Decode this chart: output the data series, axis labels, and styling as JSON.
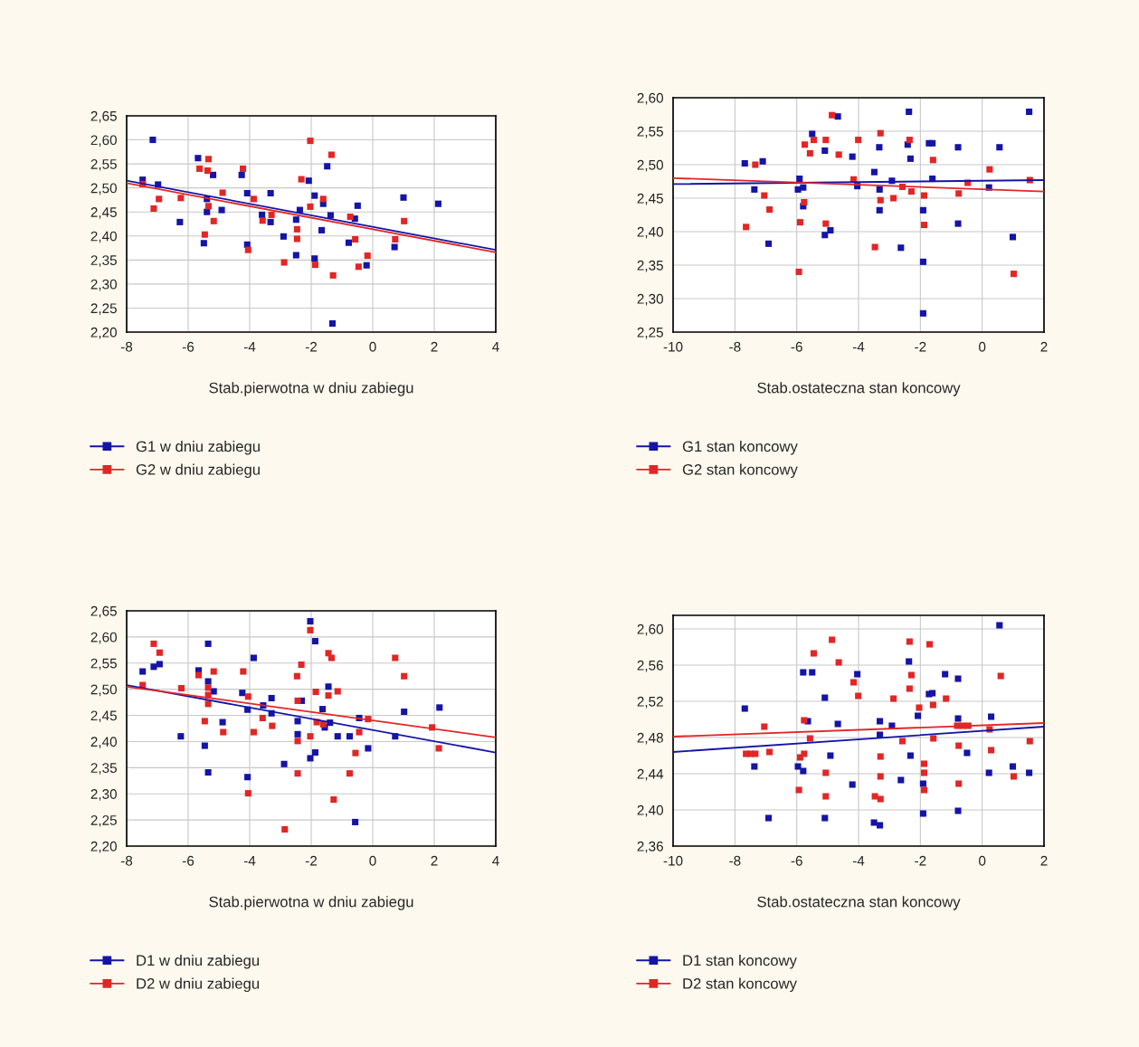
{
  "chart_data": [
    {
      "type": "scatter",
      "xlabel": "Stab.pierwotna w dniu zabiegu",
      "xlim": [
        -8,
        4
      ],
      "xticks": [
        -8,
        -6,
        -4,
        -2,
        0,
        2,
        4
      ],
      "ylim": [
        2.2,
        2.65
      ],
      "yticks": [
        {
          "value": 2.2,
          "label": "2,20"
        },
        {
          "value": 2.25,
          "label": "2,25"
        },
        {
          "value": 2.3,
          "label": "2,30"
        },
        {
          "value": 2.35,
          "label": "2,35"
        },
        {
          "value": 2.4,
          "label": "2,40"
        },
        {
          "value": 2.45,
          "label": "2,45"
        },
        {
          "value": 2.5,
          "label": "2,50"
        },
        {
          "value": 2.55,
          "label": "2,55"
        },
        {
          "value": 2.6,
          "label": "2,60"
        },
        {
          "value": 2.65,
          "label": "2,65"
        }
      ],
      "grid": true,
      "legend": "bottom",
      "marker": "square",
      "line_style": "solid",
      "series": [
        {
          "name": "G1 w dniu zabiegu",
          "color": "#1414a8",
          "x": [
            -7.15,
            -6.98,
            -6.27,
            -5.68,
            -5.49,
            -5.39,
            -5.39,
            -5.19,
            -4.91,
            -4.26,
            -4.08,
            -4.08,
            -3.6,
            -3.32,
            -3.32,
            -2.9,
            -2.49,
            -2.49,
            -2.37,
            -2.08,
            -1.89,
            -1.89,
            -1.61,
            -1.48,
            -1.66,
            -1.37,
            -1.31,
            -0.78,
            -0.58,
            -0.49,
            -0.2,
            0.71,
            1.0,
            2.13,
            -7.48
          ],
          "values": [
            2.6,
            2.507,
            2.429,
            2.562,
            2.385,
            2.477,
            2.45,
            2.527,
            2.454,
            2.527,
            2.489,
            2.382,
            2.444,
            2.489,
            2.429,
            2.399,
            2.434,
            2.36,
            2.454,
            2.515,
            2.484,
            2.353,
            2.467,
            2.545,
            2.412,
            2.443,
            2.218,
            2.386,
            2.436,
            2.463,
            2.339,
            2.377,
            2.48,
            2.467,
            2.517
          ]
        },
        {
          "name": "G2 w dniu zabiegu",
          "color": "#e22626",
          "x": [
            -7.48,
            -7.12,
            -6.95,
            -6.24,
            -5.63,
            -5.46,
            -5.34,
            -5.37,
            -5.34,
            -5.17,
            -4.88,
            -4.22,
            -4.05,
            -3.87,
            -3.58,
            -3.29,
            -2.88,
            -2.46,
            -2.46,
            -2.32,
            -2.03,
            -2.03,
            -1.87,
            -1.61,
            -1.34,
            -1.29,
            -0.73,
            -0.57,
            -0.46,
            -0.17,
            0.73,
            1.02
          ],
          "values": [
            2.508,
            2.457,
            2.477,
            2.479,
            2.54,
            2.403,
            2.56,
            2.536,
            2.462,
            2.431,
            2.49,
            2.54,
            2.371,
            2.477,
            2.432,
            2.444,
            2.345,
            2.414,
            2.394,
            2.518,
            2.598,
            2.461,
            2.34,
            2.477,
            2.569,
            2.318,
            2.44,
            2.393,
            2.336,
            2.359,
            2.393,
            2.431
          ]
        },
        {
          "type": "line",
          "color": "#1414a8",
          "x": [
            -8,
            4
          ],
          "values": [
            2.515,
            2.371
          ],
          "marker": "none"
        },
        {
          "type": "line",
          "color": "#e22626",
          "x": [
            -8,
            4
          ],
          "values": [
            2.51,
            2.366
          ],
          "marker": "none"
        }
      ]
    },
    {
      "type": "scatter",
      "xlabel": "Stab.ostateczna stan koncowy",
      "xlim": [
        -10,
        2
      ],
      "xticks": [
        -10,
        -8,
        -6,
        -4,
        -2,
        0,
        2
      ],
      "ylim": [
        2.25,
        2.6
      ],
      "yticks": [
        {
          "value": 2.25,
          "label": "2,25"
        },
        {
          "value": 2.3,
          "label": "2,30"
        },
        {
          "value": 2.35,
          "label": "2,35"
        },
        {
          "value": 2.4,
          "label": "2,40"
        },
        {
          "value": 2.45,
          "label": "2,45"
        },
        {
          "value": 2.5,
          "label": "2,50"
        },
        {
          "value": 2.55,
          "label": "2,55"
        },
        {
          "value": 2.6,
          "label": "2,60"
        }
      ],
      "grid": true,
      "legend": "bottom",
      "marker": "square",
      "line_style": "solid",
      "series": [
        {
          "name": "G1 stan koncowy",
          "color": "#1414a8",
          "x": [
            -7.68,
            -7.1,
            -7.37,
            -6.91,
            -5.91,
            -5.96,
            -5.79,
            -5.79,
            -5.5,
            -5.09,
            -5.09,
            -4.91,
            -4.67,
            -4.2,
            -4.04,
            -3.49,
            -3.33,
            -3.32,
            -3.32,
            -2.92,
            -2.63,
            -2.37,
            -2.41,
            -2.32,
            -1.91,
            -1.91,
            -1.91,
            -1.72,
            -1.61,
            -1.61,
            -0.78,
            -0.78,
            0.22,
            0.56,
            0.99,
            1.52
          ],
          "values": [
            2.502,
            2.505,
            2.463,
            2.382,
            2.479,
            2.463,
            2.466,
            2.438,
            2.546,
            2.521,
            2.395,
            2.402,
            2.572,
            2.512,
            2.468,
            2.489,
            2.526,
            2.463,
            2.432,
            2.476,
            2.376,
            2.579,
            2.53,
            2.509,
            2.432,
            2.355,
            2.278,
            2.532,
            2.532,
            2.479,
            2.526,
            2.412,
            2.466,
            2.526,
            2.392,
            2.579
          ]
        },
        {
          "name": "G2 stan koncowy",
          "color": "#e22626",
          "x": [
            -7.64,
            -7.34,
            -7.05,
            -6.88,
            -5.93,
            -5.89,
            -5.76,
            -5.74,
            -5.57,
            -5.45,
            -5.06,
            -5.06,
            -4.86,
            -4.64,
            -4.16,
            -4.01,
            -3.47,
            -3.29,
            -3.29,
            -2.87,
            -2.58,
            -2.35,
            -2.29,
            -1.88,
            -1.88,
            -1.59,
            -0.76,
            -0.47,
            0.24,
            1.02,
            1.54
          ],
          "values": [
            2.407,
            2.5,
            2.454,
            2.433,
            2.34,
            2.414,
            2.444,
            2.53,
            2.517,
            2.537,
            2.537,
            2.412,
            2.574,
            2.515,
            2.478,
            2.537,
            2.377,
            2.547,
            2.447,
            2.45,
            2.467,
            2.537,
            2.46,
            2.454,
            2.41,
            2.507,
            2.457,
            2.473,
            2.493,
            2.337,
            2.477
          ]
        },
        {
          "type": "line",
          "color": "#1414a8",
          "x": [
            -10,
            2
          ],
          "values": [
            2.471,
            2.477
          ],
          "marker": "none"
        },
        {
          "type": "line",
          "color": "#e22626",
          "x": [
            -10,
            2
          ],
          "values": [
            2.48,
            2.46
          ],
          "marker": "none"
        }
      ]
    },
    {
      "type": "scatter",
      "xlabel": "Stab.pierwotna w dniu zabiegu",
      "xlim": [
        -8,
        4
      ],
      "xticks": [
        -8,
        -6,
        -4,
        -2,
        0,
        2,
        4
      ],
      "ylim": [
        2.2,
        2.65
      ],
      "yticks": [
        {
          "value": 2.2,
          "label": "2,20"
        },
        {
          "value": 2.25,
          "label": "2,25"
        },
        {
          "value": 2.3,
          "label": "2,30"
        },
        {
          "value": 2.35,
          "label": "2,35"
        },
        {
          "value": 2.4,
          "label": "2,40"
        },
        {
          "value": 2.45,
          "label": "2,45"
        },
        {
          "value": 2.5,
          "label": "2,50"
        },
        {
          "value": 2.55,
          "label": "2,55"
        },
        {
          "value": 2.6,
          "label": "2,60"
        },
        {
          "value": 2.65,
          "label": "2,65"
        }
      ],
      "grid": true,
      "legend": "bottom",
      "marker": "square",
      "line_style": "solid",
      "series": [
        {
          "name": "D1 w dniu zabiegu",
          "color": "#1414a8",
          "x": [
            -7.48,
            -7.12,
            -6.93,
            -6.24,
            -5.66,
            -5.46,
            -5.35,
            -5.35,
            -5.35,
            -5.17,
            -4.88,
            -4.24,
            -4.07,
            -4.07,
            -3.87,
            -3.56,
            -3.29,
            -3.29,
            -2.88,
            -2.44,
            -2.44,
            -2.31,
            -2.03,
            -2.03,
            -1.87,
            -1.87,
            -1.63,
            -1.56,
            -1.44,
            -1.39,
            -1.14,
            -0.75,
            -0.44,
            -0.57,
            -0.15,
            0.73,
            1.02,
            2.17
          ],
          "values": [
            2.534,
            2.543,
            2.548,
            2.41,
            2.536,
            2.392,
            2.587,
            2.341,
            2.515,
            2.496,
            2.437,
            2.493,
            2.461,
            2.332,
            2.56,
            2.469,
            2.483,
            2.454,
            2.357,
            2.439,
            2.414,
            2.478,
            2.63,
            2.368,
            2.592,
            2.379,
            2.462,
            2.427,
            2.505,
            2.436,
            2.41,
            2.41,
            2.445,
            2.246,
            2.387,
            2.41,
            2.457,
            2.465
          ]
        },
        {
          "name": "D2 w dniu zabiegu",
          "color": "#e22626",
          "x": [
            -7.48,
            -7.12,
            -6.93,
            -6.22,
            -5.66,
            -5.46,
            -5.35,
            -5.35,
            -5.35,
            -5.17,
            -4.86,
            -4.21,
            -4.05,
            -4.05,
            -3.87,
            -3.58,
            -3.27,
            -2.86,
            -2.46,
            -2.44,
            -2.44,
            -2.44,
            -2.32,
            -2.03,
            -2.03,
            -1.85,
            -1.82,
            -1.61,
            -1.44,
            -1.34,
            -1.44,
            -1.14,
            -1.27,
            -0.75,
            -0.56,
            -0.44,
            -0.15,
            0.73,
            1.02,
            1.93,
            2.15
          ],
          "values": [
            2.508,
            2.587,
            2.57,
            2.502,
            2.527,
            2.439,
            2.503,
            2.489,
            2.472,
            2.534,
            2.418,
            2.534,
            2.486,
            2.301,
            2.418,
            2.445,
            2.43,
            2.232,
            2.525,
            2.478,
            2.401,
            2.339,
            2.547,
            2.613,
            2.41,
            2.495,
            2.437,
            2.433,
            2.569,
            2.56,
            2.488,
            2.496,
            2.289,
            2.339,
            2.378,
            2.418,
            2.443,
            2.56,
            2.525,
            2.427,
            2.387
          ]
        },
        {
          "type": "line",
          "color": "#1414a8",
          "x": [
            -8,
            4
          ],
          "values": [
            2.508,
            2.379
          ],
          "marker": "none"
        },
        {
          "type": "line",
          "color": "#e22626",
          "x": [
            -8,
            4
          ],
          "values": [
            2.505,
            2.408
          ],
          "marker": "none"
        }
      ]
    },
    {
      "type": "scatter",
      "xlabel": "Stab.ostateczna stan koncowy",
      "xlim": [
        -10,
        2
      ],
      "xticks": [
        -10,
        -8,
        -6,
        -4,
        -2,
        0,
        2
      ],
      "ylim": [
        2.36,
        2.615
      ],
      "yticks": [
        {
          "value": 2.36,
          "label": "2,36"
        },
        {
          "value": 2.4,
          "label": "2,40"
        },
        {
          "value": 2.44,
          "label": "2,44"
        },
        {
          "value": 2.48,
          "label": "2,48"
        },
        {
          "value": 2.52,
          "label": "2,52"
        },
        {
          "value": 2.56,
          "label": "2,56"
        },
        {
          "value": 2.6,
          "label": "2,60"
        }
      ],
      "grid": true,
      "legend": "bottom",
      "marker": "square",
      "line_style": "solid",
      "series": [
        {
          "name": "D1 stan koncowy",
          "color": "#1414a8",
          "x": [
            -7.68,
            -7.37,
            -6.91,
            -5.96,
            -5.79,
            -5.79,
            -5.5,
            -5.64,
            -5.09,
            -5.09,
            -4.91,
            -4.67,
            -4.2,
            -4.04,
            -3.5,
            -3.31,
            -3.31,
            -3.31,
            -2.92,
            -2.63,
            -2.37,
            -2.32,
            -2.08,
            -1.91,
            -1.91,
            -1.72,
            -1.61,
            -1.2,
            -0.78,
            -0.78,
            -0.78,
            -0.49,
            0.22,
            0.29,
            0.56,
            0.99,
            1.52
          ],
          "values": [
            2.512,
            2.448,
            2.391,
            2.448,
            2.443,
            2.552,
            2.552,
            2.498,
            2.524,
            2.391,
            2.46,
            2.495,
            2.428,
            2.55,
            2.386,
            2.383,
            2.498,
            2.483,
            2.493,
            2.433,
            2.564,
            2.46,
            2.504,
            2.396,
            2.429,
            2.528,
            2.529,
            2.55,
            2.545,
            2.501,
            2.399,
            2.463,
            2.441,
            2.503,
            2.604,
            2.448,
            2.441
          ]
        },
        {
          "name": "D2 stan koncowy",
          "color": "#e22626",
          "x": [
            -7.64,
            -7.49,
            -7.34,
            -7.05,
            -6.88,
            -5.93,
            -5.89,
            -5.76,
            -5.76,
            -5.57,
            -5.45,
            -5.06,
            -5.06,
            -4.86,
            -4.64,
            -4.16,
            -4.01,
            -3.47,
            -3.29,
            -3.29,
            -3.29,
            -2.87,
            -2.58,
            -2.35,
            -2.29,
            -2.35,
            -2.04,
            -1.88,
            -1.88,
            -1.88,
            -1.7,
            -1.59,
            -1.58,
            -1.17,
            -0.81,
            -0.63,
            -0.45,
            -0.76,
            -0.76,
            0.24,
            0.29,
            0.6,
            1.02,
            1.54
          ],
          "values": [
            2.462,
            2.462,
            2.462,
            2.492,
            2.464,
            2.422,
            2.458,
            2.462,
            2.499,
            2.479,
            2.573,
            2.441,
            2.415,
            2.588,
            2.563,
            2.541,
            2.526,
            2.415,
            2.412,
            2.459,
            2.437,
            2.523,
            2.476,
            2.586,
            2.549,
            2.534,
            2.513,
            2.451,
            2.441,
            2.422,
            2.583,
            2.516,
            2.479,
            2.523,
            2.493,
            2.493,
            2.493,
            2.471,
            2.429,
            2.489,
            2.466,
            2.548,
            2.437,
            2.476
          ]
        },
        {
          "type": "line",
          "color": "#1414a8",
          "x": [
            -10,
            2
          ],
          "values": [
            2.464,
            2.492
          ],
          "marker": "none"
        },
        {
          "type": "line",
          "color": "#e22626",
          "x": [
            -10,
            2
          ],
          "values": [
            2.481,
            2.496
          ],
          "marker": "none"
        }
      ]
    }
  ]
}
